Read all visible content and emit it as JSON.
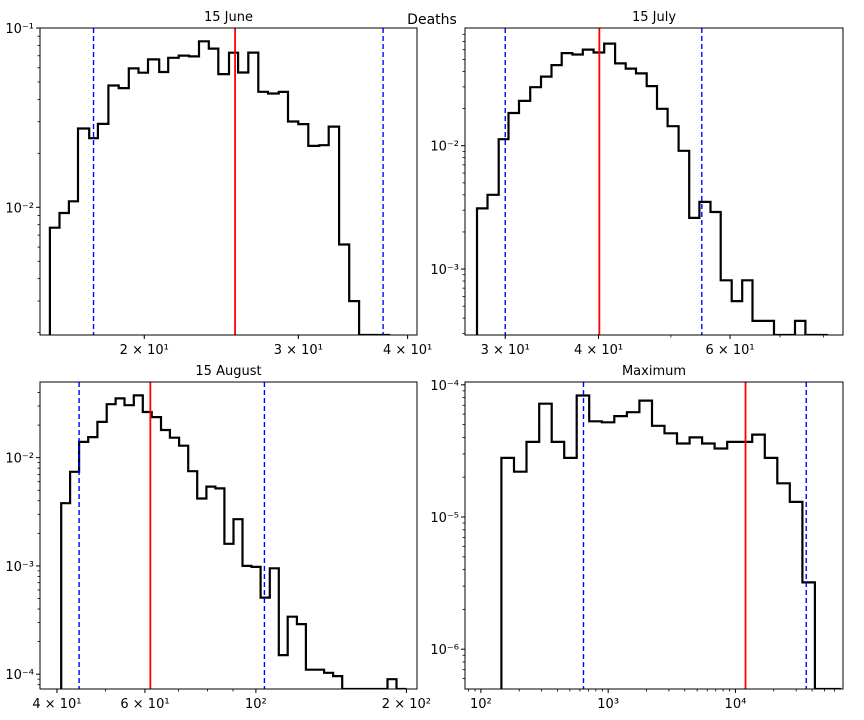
{
  "figure": {
    "suptitle": "Deaths"
  },
  "colors": {
    "histogram": "#000000",
    "median_line": "#ff0000",
    "interval_lines": "#0000ff"
  },
  "chart_data": [
    {
      "type": "histogram",
      "title": "15 June",
      "x_scale": "log",
      "y_scale": "log",
      "xlim": [
        15.2,
        41.0
      ],
      "ylim": [
        0.00194,
        0.1
      ],
      "x_ticks": [
        {
          "value": 20,
          "label": "2 × 10¹"
        },
        {
          "value": 30,
          "label": "3 × 10¹"
        },
        {
          "value": 40,
          "label": "4 × 10¹"
        }
      ],
      "y_ticks": [
        {
          "value": 0.01,
          "label": "10⁻²"
        },
        {
          "value": 0.1,
          "label": "10⁻¹"
        }
      ],
      "bin_edges": [
        15.6,
        16.0,
        16.4,
        16.8,
        17.3,
        17.7,
        18.2,
        18.7,
        19.2,
        19.7,
        20.2,
        20.8,
        21.3,
        21.9,
        22.5,
        23.1,
        23.7,
        24.3,
        25.0,
        25.6,
        26.3,
        27.0,
        27.7,
        28.5,
        29.2,
        30.0,
        30.8,
        31.7,
        32.5,
        33.4,
        34.3,
        35.2,
        36.1,
        37.1,
        38.1
      ],
      "density": [
        0.0077,
        0.0093,
        0.0108,
        0.0275,
        0.0243,
        0.0292,
        0.0478,
        0.0462,
        0.0595,
        0.0563,
        0.0668,
        0.0568,
        0.0682,
        0.0702,
        0.0694,
        0.0843,
        0.0768,
        0.0553,
        0.0728,
        0.0565,
        0.0729,
        0.0441,
        0.0431,
        0.044,
        0.0301,
        0.0291,
        0.022,
        0.0222,
        0.0282,
        0.0062,
        0.003,
        0.0018,
        0.0018,
        0.0018
      ],
      "median": 25.4,
      "interval": [
        17.5,
        37.5
      ]
    },
    {
      "type": "histogram",
      "title": "15 July",
      "x_scale": "log",
      "y_scale": "log",
      "xlim": [
        26.5,
        85.0
      ],
      "ylim": [
        0.000292,
        0.09
      ],
      "x_ticks": [
        {
          "value": 30,
          "label": "3 × 10¹"
        },
        {
          "value": 40,
          "label": "4 × 10¹"
        },
        {
          "value": 60,
          "label": "6 × 10¹"
        }
      ],
      "y_ticks": [
        {
          "value": 0.001,
          "label": "10⁻³"
        },
        {
          "value": 0.01,
          "label": "10⁻²"
        }
      ],
      "bin_edges": [
        27.5,
        28.4,
        29.4,
        30.3,
        31.3,
        32.4,
        33.5,
        34.6,
        35.7,
        36.9,
        38.1,
        39.4,
        40.7,
        42.1,
        43.5,
        44.9,
        46.4,
        47.9,
        49.5,
        51.2,
        52.9,
        54.6,
        56.5,
        58.3,
        60.3,
        62.3,
        64.3,
        66.5,
        68.7,
        71.0,
        73.3,
        75.7,
        78.3,
        80.9
      ],
      "density": [
        0.0031,
        0.004,
        0.0113,
        0.0184,
        0.0231,
        0.0298,
        0.0363,
        0.045,
        0.0563,
        0.0549,
        0.0601,
        0.057,
        0.0672,
        0.0465,
        0.0422,
        0.0386,
        0.0304,
        0.0199,
        0.0144,
        0.0091,
        0.0026,
        0.0035,
        0.0029,
        0.00081,
        0.00055,
        0.00081,
        0.00038,
        0.00038,
        0.00028,
        0.00028,
        0.00038,
        0.00028,
        0.00028
      ],
      "median": 40.1,
      "interval": [
        30.0,
        55.0
      ]
    },
    {
      "type": "histogram",
      "title": "15 August",
      "x_scale": "log",
      "y_scale": "log",
      "xlim": [
        37.0,
        210.0
      ],
      "ylim": [
        7.3e-05,
        0.05
      ],
      "x_ticks": [
        {
          "value": 40,
          "label": "4 × 10¹"
        },
        {
          "value": 60,
          "label": "6 × 10¹"
        },
        {
          "value": 100,
          "label": "10²"
        },
        {
          "value": 200,
          "label": "2 × 10²"
        }
      ],
      "y_ticks": [
        {
          "value": 0.0001,
          "label": "10⁻⁴"
        },
        {
          "value": 0.001,
          "label": "10⁻³"
        },
        {
          "value": 0.01,
          "label": "10⁻²"
        }
      ],
      "bin_edges": [
        40.8,
        42.5,
        44.3,
        46.2,
        48.2,
        50.3,
        52.4,
        54.6,
        57.0,
        59.4,
        61.9,
        64.6,
        67.3,
        70.2,
        73.2,
        76.3,
        79.6,
        83.0,
        86.5,
        90.2,
        94.0,
        98.0,
        102.2,
        106.6,
        111.1,
        115.8,
        120.8,
        125.9,
        131.3,
        136.9,
        142.7,
        148.8,
        155.1,
        161.7,
        168.6,
        175.8,
        183.3,
        191.1,
        199.2
      ],
      "density": [
        0.0038,
        0.0074,
        0.014,
        0.0155,
        0.0214,
        0.0312,
        0.0353,
        0.0305,
        0.0376,
        0.0264,
        0.0237,
        0.018,
        0.0153,
        0.0129,
        0.0075,
        0.0042,
        0.0054,
        0.0052,
        0.0016,
        0.0027,
        0.001,
        0.00098,
        0.00051,
        0.00095,
        0.00015,
        0.00034,
        0.00029,
        0.00011,
        0.00011,
        0.000103,
        9.6e-05,
        7e-05,
        7e-05,
        7e-05,
        7e-05,
        7e-05,
        9e-05,
        7e-05
      ],
      "median": 61.5,
      "interval": [
        44.3,
        104.0
      ]
    },
    {
      "type": "histogram",
      "title": "Maximum",
      "x_scale": "log",
      "y_scale": "log",
      "xlim": [
        75.0,
        70000.0
      ],
      "ylim": [
        5e-07,
        0.000105
      ],
      "x_ticks": [
        {
          "value": 100,
          "label": "10²"
        },
        {
          "value": 1000,
          "label": "10³"
        },
        {
          "value": 10000,
          "label": "10⁴"
        }
      ],
      "y_ticks": [
        {
          "value": 1e-06,
          "label": "10⁻⁶"
        },
        {
          "value": 1e-05,
          "label": "10⁻⁵"
        },
        {
          "value": 0.0001,
          "label": "10⁻⁴"
        }
      ],
      "bin_edges": [
        145,
        182,
        228,
        287,
        360,
        451,
        566,
        710,
        891,
        1118,
        1403,
        1760,
        2208,
        2770,
        3475,
        4360,
        5470,
        6862,
        8609,
        10800,
        13549,
        16998,
        21324,
        26752,
        33560,
        42100,
        52817,
        66260
      ],
      "density": [
        2.8e-05,
        2.2e-05,
        3.7e-05,
        7.2e-05,
        3.7e-05,
        2.8e-05,
        8.3e-05,
        5.3e-05,
        5.2e-05,
        5.8e-05,
        6.2e-05,
        7.6e-05,
        4.9e-05,
        4.3e-05,
        3.6e-05,
        4e-05,
        3.6e-05,
        3.3e-05,
        3.7e-05,
        3.7e-05,
        4.2e-05,
        2.8e-05,
        1.8e-05,
        1.3e-05,
        3.2e-06,
        5e-07,
        5e-07
      ],
      "median": 12000,
      "interval": [
        640,
        36000
      ]
    }
  ]
}
